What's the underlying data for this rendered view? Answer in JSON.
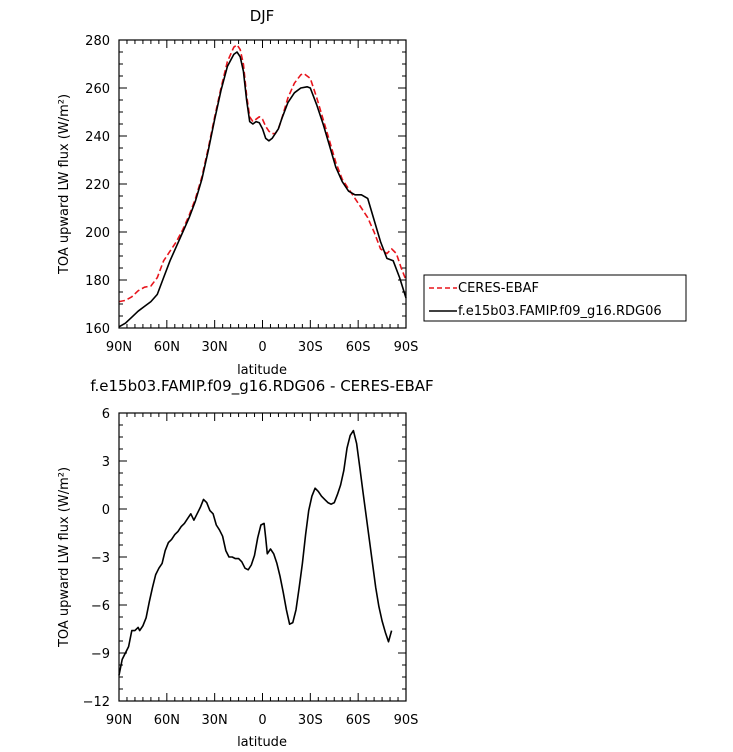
{
  "chart_data": [
    {
      "type": "line",
      "title": "DJF",
      "xlabel": "latitude",
      "ylabel": "TOA upward LW flux (W/m²)",
      "xlim": [
        90,
        -90
      ],
      "ylim": [
        160,
        280
      ],
      "x_ticks": [
        90,
        60,
        30,
        0,
        -30,
        -60,
        -90
      ],
      "x_tick_labels": [
        "90N",
        "60N",
        "30N",
        "0",
        "30S",
        "60S",
        "90S"
      ],
      "y_ticks": [
        160,
        180,
        200,
        220,
        240,
        260,
        280
      ],
      "y_tick_labels": [
        "160",
        "180",
        "200",
        "220",
        "240",
        "260",
        "280"
      ],
      "legend": "right",
      "series": [
        {
          "name": "CERES-EBAF",
          "color": "#e8151c",
          "dash": "dashed",
          "points": [
            [
              90,
              171
            ],
            [
              86,
              171.5
            ],
            [
              82,
              173
            ],
            [
              78,
              175.5
            ],
            [
              74,
              177
            ],
            [
              70,
              177.5
            ],
            [
              66,
              181
            ],
            [
              62,
              188
            ],
            [
              58,
              192
            ],
            [
              54,
              196
            ],
            [
              50,
              201
            ],
            [
              46,
              207
            ],
            [
              42,
              214
            ],
            [
              38,
              223
            ],
            [
              34,
              235
            ],
            [
              30,
              248
            ],
            [
              26,
              260
            ],
            [
              22,
              271
            ],
            [
              18,
              277
            ],
            [
              16,
              278
            ],
            [
              14,
              276
            ],
            [
              12,
              270
            ],
            [
              10,
              257
            ],
            [
              8,
              248
            ],
            [
              6,
              246
            ],
            [
              4,
              247
            ],
            [
              2,
              248
            ],
            [
              0,
              247
            ],
            [
              -2,
              244
            ],
            [
              -4,
              242
            ],
            [
              -6,
              241
            ],
            [
              -8,
              241
            ],
            [
              -10,
              243
            ],
            [
              -12,
              247
            ],
            [
              -16,
              256
            ],
            [
              -20,
              262
            ],
            [
              -24,
              265.5
            ],
            [
              -26,
              266
            ],
            [
              -30,
              264
            ],
            [
              -34,
              256
            ],
            [
              -38,
              247
            ],
            [
              -42,
              238
            ],
            [
              -46,
              229
            ],
            [
              -50,
              222
            ],
            [
              -54,
              218
            ],
            [
              -58,
              214
            ],
            [
              -62,
              210
            ],
            [
              -66,
              206
            ],
            [
              -70,
              200
            ],
            [
              -74,
              193
            ],
            [
              -78,
              191
            ],
            [
              -81,
              193
            ],
            [
              -84,
              191
            ],
            [
              -87,
              185
            ],
            [
              -90,
              180
            ]
          ]
        },
        {
          "name": "f.e15b03.FAMIP.f09_g16.RDG06",
          "color": "#000000",
          "dash": "solid",
          "points": [
            [
              90,
              160.5
            ],
            [
              86,
              162
            ],
            [
              82,
              164.5
            ],
            [
              78,
              167
            ],
            [
              74,
              169
            ],
            [
              70,
              171
            ],
            [
              66,
              174
            ],
            [
              62,
              181
            ],
            [
              58,
              188
            ],
            [
              54,
              194
            ],
            [
              50,
              200
            ],
            [
              46,
              206
            ],
            [
              42,
              213
            ],
            [
              38,
              222
            ],
            [
              34,
              234
            ],
            [
              30,
              247
            ],
            [
              26,
              259
            ],
            [
              22,
              269
            ],
            [
              18,
              274
            ],
            [
              16,
              275
            ],
            [
              14,
              273
            ],
            [
              12,
              267
            ],
            [
              10,
              255
            ],
            [
              8,
              246
            ],
            [
              6,
              245
            ],
            [
              4,
              246
            ],
            [
              2,
              245.5
            ],
            [
              0,
              243
            ],
            [
              -2,
              239
            ],
            [
              -4,
              238
            ],
            [
              -6,
              239
            ],
            [
              -8,
              241
            ],
            [
              -10,
              243
            ],
            [
              -12,
              247
            ],
            [
              -16,
              254
            ],
            [
              -20,
              258
            ],
            [
              -24,
              260
            ],
            [
              -28,
              260.5
            ],
            [
              -30,
              260
            ],
            [
              -34,
              253
            ],
            [
              -38,
              245
            ],
            [
              -42,
              236
            ],
            [
              -46,
              227
            ],
            [
              -50,
              221
            ],
            [
              -54,
              217
            ],
            [
              -58,
              215.5
            ],
            [
              -62,
              215.5
            ],
            [
              -66,
              214
            ],
            [
              -70,
              205
            ],
            [
              -74,
              196
            ],
            [
              -78,
              189
            ],
            [
              -82,
              188
            ],
            [
              -86,
              181
            ],
            [
              -90,
              172.5
            ]
          ]
        }
      ]
    },
    {
      "type": "line",
      "title": "f.e15b03.FAMIP.f09_g16.RDG06 - CERES-EBAF",
      "xlabel": "latitude",
      "ylabel": "TOA upward LW flux (W/m²)",
      "xlim": [
        90,
        -90
      ],
      "ylim": [
        -12,
        6
      ],
      "x_ticks": [
        90,
        60,
        30,
        0,
        -30,
        -60,
        -90
      ],
      "x_tick_labels": [
        "90N",
        "60N",
        "30N",
        "0",
        "30S",
        "60S",
        "90S"
      ],
      "y_ticks": [
        -12,
        -9,
        -6,
        -3,
        0,
        3,
        6
      ],
      "y_tick_labels": [
        "−12",
        "−9",
        "−6",
        "−3",
        "0",
        "3",
        "6"
      ],
      "series": [
        {
          "color": "#000000",
          "dash": "solid",
          "points": [
            [
              90,
              -10.4
            ],
            [
              88,
              -9.4
            ],
            [
              86,
              -9.0
            ],
            [
              84,
              -8.6
            ],
            [
              82,
              -7.6
            ],
            [
              80,
              -7.6
            ],
            [
              78,
              -7.4
            ],
            [
              77,
              -7.6
            ],
            [
              75,
              -7.3
            ],
            [
              73,
              -6.8
            ],
            [
              71,
              -5.8
            ],
            [
              69,
              -4.9
            ],
            [
              67,
              -4.1
            ],
            [
              65,
              -3.7
            ],
            [
              63,
              -3.4
            ],
            [
              61,
              -2.6
            ],
            [
              59,
              -2.1
            ],
            [
              57,
              -1.9
            ],
            [
              55,
              -1.6
            ],
            [
              53,
              -1.4
            ],
            [
              51,
              -1.1
            ],
            [
              49,
              -0.9
            ],
            [
              47,
              -0.6
            ],
            [
              45,
              -0.3
            ],
            [
              43,
              -0.7
            ],
            [
              41,
              -0.3
            ],
            [
              39,
              0.1
            ],
            [
              37,
              0.6
            ],
            [
              35,
              0.4
            ],
            [
              33,
              -0.1
            ],
            [
              31,
              -0.3
            ],
            [
              29,
              -1.0
            ],
            [
              27,
              -1.3
            ],
            [
              25,
              -1.7
            ],
            [
              23,
              -2.6
            ],
            [
              21,
              -3.0
            ],
            [
              19,
              -3.0
            ],
            [
              17,
              -3.1
            ],
            [
              15,
              -3.1
            ],
            [
              13,
              -3.3
            ],
            [
              11,
              -3.7
            ],
            [
              9,
              -3.8
            ],
            [
              7,
              -3.5
            ],
            [
              5,
              -2.9
            ],
            [
              3,
              -1.8
            ],
            [
              1,
              -1.0
            ],
            [
              -1,
              -0.9
            ],
            [
              -2,
              -1.8
            ],
            [
              -3,
              -2.8
            ],
            [
              -5,
              -2.5
            ],
            [
              -7,
              -2.8
            ],
            [
              -9,
              -3.4
            ],
            [
              -11,
              -4.2
            ],
            [
              -13,
              -5.2
            ],
            [
              -15,
              -6.3
            ],
            [
              -17,
              -7.2
            ],
            [
              -19,
              -7.1
            ],
            [
              -21,
              -6.3
            ],
            [
              -23,
              -4.9
            ],
            [
              -25,
              -3.4
            ],
            [
              -27,
              -1.6
            ],
            [
              -29,
              -0.1
            ],
            [
              -31,
              0.8
            ],
            [
              -33,
              1.3
            ],
            [
              -35,
              1.1
            ],
            [
              -37,
              0.8
            ],
            [
              -39,
              0.6
            ],
            [
              -41,
              0.4
            ],
            [
              -43,
              0.3
            ],
            [
              -45,
              0.4
            ],
            [
              -47,
              0.9
            ],
            [
              -49,
              1.5
            ],
            [
              -51,
              2.4
            ],
            [
              -53,
              3.8
            ],
            [
              -55,
              4.6
            ],
            [
              -57,
              4.9
            ],
            [
              -59,
              4.1
            ],
            [
              -61,
              2.6
            ],
            [
              -63,
              1.1
            ],
            [
              -65,
              -0.4
            ],
            [
              -67,
              -1.9
            ],
            [
              -69,
              -3.4
            ],
            [
              -71,
              -4.9
            ],
            [
              -73,
              -6.1
            ],
            [
              -75,
              -7.0
            ],
            [
              -77,
              -7.7
            ],
            [
              -79,
              -8.3
            ],
            [
              -81,
              -7.6
            ]
          ]
        }
      ]
    }
  ]
}
